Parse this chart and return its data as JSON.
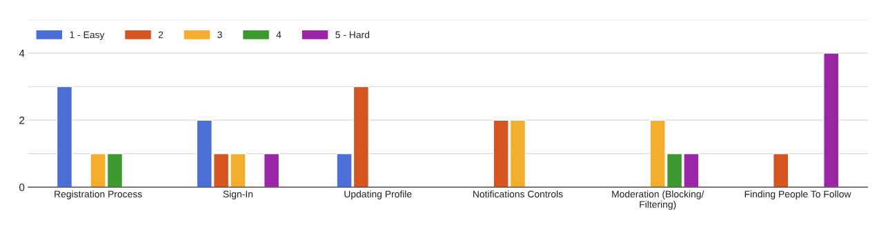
{
  "chart_data": {
    "type": "bar",
    "categories": [
      "Registration Process",
      "Sign-In",
      "Updating Profile",
      "Notifications Controls",
      "Moderation (Blocking/\nFiltering)",
      "Finding People To Follow"
    ],
    "series": [
      {
        "name": "1 - Easy",
        "color": "#4a6fd6",
        "values": [
          3,
          2,
          1,
          null,
          null,
          null
        ]
      },
      {
        "name": "2",
        "color": "#d6541f",
        "values": [
          null,
          1,
          3,
          2,
          null,
          1
        ]
      },
      {
        "name": "3",
        "color": "#f4ae2d",
        "values": [
          1,
          1,
          null,
          2,
          2,
          null
        ]
      },
      {
        "name": "4",
        "color": "#3d9a2f",
        "values": [
          1,
          null,
          null,
          null,
          1,
          null
        ]
      },
      {
        "name": "5 - Hard",
        "color": "#9a25a5",
        "values": [
          null,
          1,
          null,
          null,
          1,
          4
        ]
      }
    ],
    "ylim": [
      0,
      5
    ],
    "yticks": [
      0,
      {
        "value": 1,
        "label": null
      },
      2,
      {
        "value": 3,
        "label": null
      },
      4,
      {
        "value": 5,
        "label": null
      }
    ],
    "grid": "y",
    "legend": "top left"
  }
}
